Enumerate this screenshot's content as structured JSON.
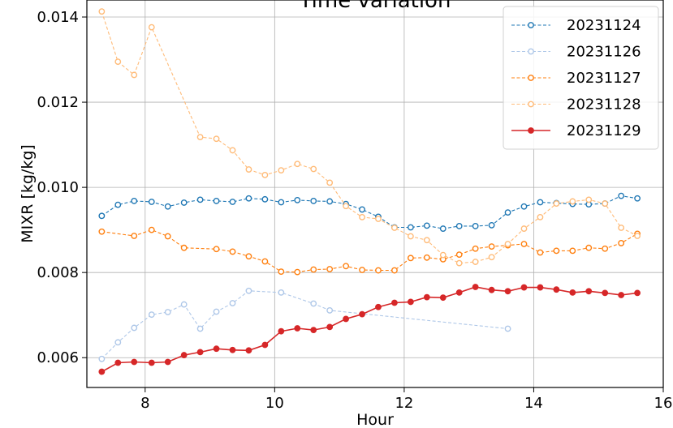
{
  "chart_data": {
    "type": "line",
    "title": "Time variation",
    "xlabel": "Hour",
    "ylabel": "MIXR [kg/kg]",
    "xlim": [
      7.1,
      16.0
    ],
    "ylim": [
      0.0053,
      0.0144
    ],
    "xticks": [
      8,
      10,
      12,
      14,
      16
    ],
    "yticks": [
      0.006,
      0.008,
      0.01,
      0.012,
      0.014
    ],
    "xtick_labels": [
      "8",
      "10",
      "12",
      "14",
      "16"
    ],
    "ytick_labels": [
      "0.006",
      "0.008",
      "0.010",
      "0.012",
      "0.014"
    ],
    "grid": true,
    "legend_position": "top-right",
    "series": [
      {
        "name": "20231124",
        "color": "#1f77b4",
        "style": "dashed-open-circle",
        "points": [
          [
            7.33,
            0.00933
          ],
          [
            7.58,
            0.00959
          ],
          [
            7.83,
            0.00968
          ],
          [
            8.1,
            0.00966
          ],
          [
            8.35,
            0.00955
          ],
          [
            8.6,
            0.00964
          ],
          [
            8.85,
            0.00971
          ],
          [
            9.1,
            0.00968
          ],
          [
            9.35,
            0.00966
          ],
          [
            9.6,
            0.00974
          ],
          [
            9.85,
            0.00972
          ],
          [
            10.1,
            0.00965
          ],
          [
            10.35,
            0.0097
          ],
          [
            10.6,
            0.00968
          ],
          [
            10.85,
            0.00967
          ],
          [
            11.1,
            0.00961
          ],
          [
            11.35,
            0.00948
          ],
          [
            11.6,
            0.00931
          ],
          [
            11.85,
            0.00906
          ],
          [
            12.1,
            0.00906
          ],
          [
            12.35,
            0.0091
          ],
          [
            12.6,
            0.00903
          ],
          [
            12.85,
            0.00909
          ],
          [
            13.1,
            0.00909
          ],
          [
            13.35,
            0.00911
          ],
          [
            13.6,
            0.00941
          ],
          [
            13.85,
            0.00955
          ],
          [
            14.1,
            0.00965
          ],
          [
            14.35,
            0.00963
          ],
          [
            14.6,
            0.00961
          ],
          [
            14.85,
            0.0096
          ],
          [
            15.1,
            0.00962
          ],
          [
            15.35,
            0.0098
          ],
          [
            15.6,
            0.00974
          ]
        ]
      },
      {
        "name": "20231126",
        "color": "#aec7e8",
        "style": "dashed-open-circle",
        "points": [
          [
            7.33,
            0.00597
          ],
          [
            7.58,
            0.00636
          ],
          [
            7.83,
            0.0067
          ],
          [
            8.1,
            0.00701
          ],
          [
            8.35,
            0.00707
          ],
          [
            8.6,
            0.00725
          ],
          [
            8.85,
            0.00668
          ],
          [
            9.1,
            0.00708
          ],
          [
            9.35,
            0.00728
          ],
          [
            9.6,
            0.00757
          ],
          [
            10.1,
            0.00753
          ],
          [
            10.6,
            0.00727
          ],
          [
            10.85,
            0.00711
          ],
          [
            13.6,
            0.00668
          ]
        ]
      },
      {
        "name": "20231127",
        "color": "#ff7f0e",
        "style": "dashed-open-circle",
        "points": [
          [
            7.33,
            0.00896
          ],
          [
            7.83,
            0.00886
          ],
          [
            8.1,
            0.009
          ],
          [
            8.35,
            0.00885
          ],
          [
            8.6,
            0.00858
          ],
          [
            9.1,
            0.00855
          ],
          [
            9.35,
            0.00849
          ],
          [
            9.6,
            0.00838
          ],
          [
            9.85,
            0.00826
          ],
          [
            10.1,
            0.00802
          ],
          [
            10.35,
            0.00801
          ],
          [
            10.6,
            0.00807
          ],
          [
            10.85,
            0.00808
          ],
          [
            11.1,
            0.00815
          ],
          [
            11.35,
            0.00806
          ],
          [
            11.6,
            0.00805
          ],
          [
            11.85,
            0.00805
          ],
          [
            12.1,
            0.00834
          ],
          [
            12.35,
            0.00835
          ],
          [
            12.6,
            0.00831
          ],
          [
            12.85,
            0.00842
          ],
          [
            13.1,
            0.00856
          ],
          [
            13.35,
            0.00861
          ],
          [
            13.6,
            0.00864
          ],
          [
            13.85,
            0.00867
          ],
          [
            14.1,
            0.00847
          ],
          [
            14.35,
            0.00851
          ],
          [
            14.6,
            0.00851
          ],
          [
            14.85,
            0.00858
          ],
          [
            15.1,
            0.00856
          ],
          [
            15.35,
            0.00869
          ],
          [
            15.6,
            0.00891
          ]
        ]
      },
      {
        "name": "20231128",
        "color": "#ffbb78",
        "style": "dashed-open-circle",
        "points": [
          [
            7.33,
            0.01413
          ],
          [
            7.58,
            0.01295
          ],
          [
            7.83,
            0.01264
          ],
          [
            8.1,
            0.01376
          ],
          [
            8.85,
            0.01118
          ],
          [
            9.1,
            0.01114
          ],
          [
            9.35,
            0.01087
          ],
          [
            9.6,
            0.01042
          ],
          [
            9.85,
            0.01029
          ],
          [
            10.1,
            0.0104
          ],
          [
            10.35,
            0.01055
          ],
          [
            10.6,
            0.01043
          ],
          [
            10.85,
            0.01011
          ],
          [
            11.1,
            0.00956
          ],
          [
            11.35,
            0.0093
          ],
          [
            11.6,
            0.00926
          ],
          [
            11.85,
            0.00905
          ],
          [
            12.1,
            0.00885
          ],
          [
            12.35,
            0.00876
          ],
          [
            12.6,
            0.00841
          ],
          [
            12.85,
            0.00822
          ],
          [
            13.1,
            0.00825
          ],
          [
            13.35,
            0.00836
          ],
          [
            13.6,
            0.00867
          ],
          [
            13.85,
            0.00903
          ],
          [
            14.1,
            0.0093
          ],
          [
            14.35,
            0.00962
          ],
          [
            14.6,
            0.00967
          ],
          [
            14.85,
            0.00971
          ],
          [
            15.1,
            0.00962
          ],
          [
            15.35,
            0.00905
          ],
          [
            15.6,
            0.00886
          ]
        ]
      },
      {
        "name": "20231129",
        "color": "#d62728",
        "style": "solid-filled-circle",
        "points": [
          [
            7.33,
            0.00567
          ],
          [
            7.58,
            0.00588
          ],
          [
            7.83,
            0.0059
          ],
          [
            8.1,
            0.00588
          ],
          [
            8.35,
            0.0059
          ],
          [
            8.6,
            0.00606
          ],
          [
            8.85,
            0.00613
          ],
          [
            9.1,
            0.00621
          ],
          [
            9.35,
            0.00618
          ],
          [
            9.6,
            0.00617
          ],
          [
            9.85,
            0.0063
          ],
          [
            10.1,
            0.00662
          ],
          [
            10.35,
            0.00669
          ],
          [
            10.6,
            0.00665
          ],
          [
            10.85,
            0.00672
          ],
          [
            11.1,
            0.00691
          ],
          [
            11.35,
            0.00702
          ],
          [
            11.6,
            0.00719
          ],
          [
            11.85,
            0.00729
          ],
          [
            12.1,
            0.00731
          ],
          [
            12.35,
            0.00742
          ],
          [
            12.6,
            0.00741
          ],
          [
            12.85,
            0.00753
          ],
          [
            13.1,
            0.00766
          ],
          [
            13.35,
            0.00759
          ],
          [
            13.6,
            0.00756
          ],
          [
            13.85,
            0.00765
          ],
          [
            14.1,
            0.00765
          ],
          [
            14.35,
            0.0076
          ],
          [
            14.6,
            0.00753
          ],
          [
            14.85,
            0.00756
          ],
          [
            15.1,
            0.00752
          ],
          [
            15.35,
            0.00747
          ],
          [
            15.6,
            0.00752
          ]
        ]
      }
    ]
  }
}
